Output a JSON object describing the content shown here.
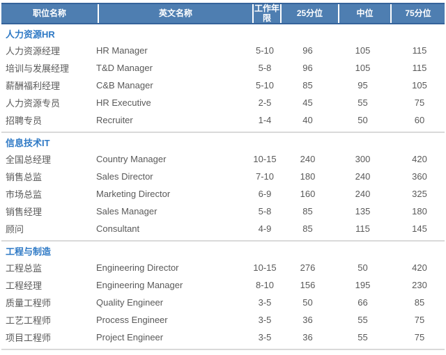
{
  "colors": {
    "header_bg": "#4E7EB1",
    "header_border": "#35639A",
    "section_title": "#2E79C5",
    "row_text": "#595959",
    "divider": "#D9D9D9"
  },
  "chart_data": {
    "type": "table",
    "title": "",
    "columns": [
      "职位名称",
      "英文名称",
      "工作年限",
      "25分位",
      "中位",
      "75分位"
    ],
    "column_keys": [
      "job-title",
      "english-name",
      "years",
      "p25",
      "median",
      "p75"
    ],
    "sections": [
      {
        "name": "人力资源HR",
        "rows": [
          [
            "人力资源经理",
            "HR Manager",
            "5-10",
            "96",
            "105",
            "115"
          ],
          [
            "培训与发展经理",
            "T&D Manager",
            "5-8",
            "96",
            "105",
            "115"
          ],
          [
            "薪酬福利经理",
            "C&B Manager",
            "5-10",
            "85",
            "95",
            "105"
          ],
          [
            "人力资源专员",
            "HR Executive",
            "2-5",
            "45",
            "55",
            "75"
          ],
          [
            "招聘专员",
            "Recruiter",
            "1-4",
            "40",
            "50",
            "60"
          ]
        ]
      },
      {
        "name": "信息技术IT",
        "rows": [
          [
            "全国总经理",
            "Country Manager",
            "10-15",
            "240",
            "300",
            "420"
          ],
          [
            "销售总监",
            "Sales Director",
            "7-10",
            "180",
            "240",
            "360"
          ],
          [
            "市场总监",
            "Marketing Director",
            "6-9",
            "160",
            "240",
            "325"
          ],
          [
            "销售经理",
            "Sales Manager",
            "5-8",
            "85",
            "135",
            "180"
          ],
          [
            "顾问",
            "Consultant",
            "4-9",
            "85",
            "115",
            "145"
          ]
        ]
      },
      {
        "name": "工程与制造",
        "rows": [
          [
            "工程总监",
            "Engineering Director",
            "10-15",
            "276",
            "50",
            "420"
          ],
          [
            "工程经理",
            "Engineering Manager",
            "8-10",
            "156",
            "195",
            "230"
          ],
          [
            "质量工程师",
            "Quality Engineer",
            "3-5",
            "50",
            "66",
            "85"
          ],
          [
            "工艺工程师",
            "Process Engineer",
            "3-5",
            "36",
            "55",
            "75"
          ],
          [
            "项目工程师",
            "Project Engineer",
            "3-5",
            "36",
            "55",
            "75"
          ]
        ]
      }
    ]
  }
}
